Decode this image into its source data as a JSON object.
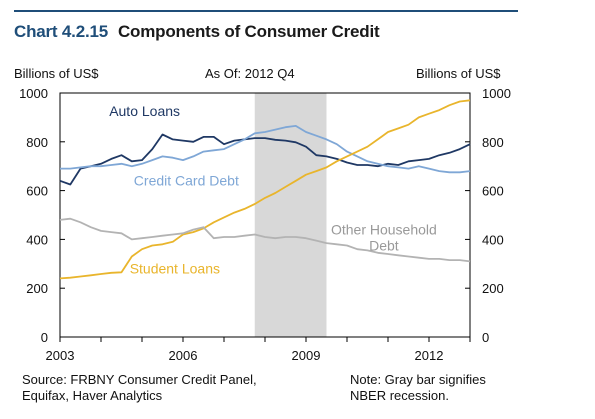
{
  "header": {
    "chart_id": "Chart 4.2.15",
    "chart_title": "Components of Consumer Credit"
  },
  "axis_labels": {
    "left_unit": "Billions of US$",
    "right_unit": "Billions of US$",
    "as_of": "As Of: 2012 Q4"
  },
  "footer": {
    "source": "Source: FRBNY Consumer Credit Panel, Equifax, Haver Analytics",
    "note": "Note: Gray bar signifies NBER recession."
  },
  "colors": {
    "auto": "#1f3864",
    "credit_card": "#7fa7d6",
    "student": "#e9b52c",
    "other": "#b3b3b3",
    "recession": "#d8d8d8"
  },
  "chart_data": {
    "type": "line",
    "xlim": [
      2003.0,
      2013.0
    ],
    "ylim": [
      0,
      1000
    ],
    "xticks": [
      2003,
      2006,
      2009,
      2012
    ],
    "yticks": [
      0,
      200,
      400,
      600,
      800,
      1000
    ],
    "recession": [
      2007.75,
      2009.5
    ],
    "series": [
      {
        "name": "Auto Loans",
        "key": "auto",
        "label_pos": [
          2004.2,
          905
        ],
        "x": [
          2003.0,
          2003.25,
          2003.5,
          2003.75,
          2004.0,
          2004.25,
          2004.5,
          2004.75,
          2005.0,
          2005.25,
          2005.5,
          2005.75,
          2006.0,
          2006.25,
          2006.5,
          2006.75,
          2007.0,
          2007.25,
          2007.5,
          2007.75,
          2008.0,
          2008.25,
          2008.5,
          2008.75,
          2009.0,
          2009.25,
          2009.5,
          2009.75,
          2010.0,
          2010.25,
          2010.5,
          2010.75,
          2011.0,
          2011.25,
          2011.5,
          2011.75,
          2012.0,
          2012.25,
          2012.5,
          2012.75,
          2013.0
        ],
        "values": [
          640,
          625,
          690,
          700,
          710,
          730,
          745,
          720,
          725,
          770,
          830,
          810,
          805,
          800,
          820,
          820,
          790,
          805,
          810,
          815,
          815,
          808,
          805,
          798,
          780,
          745,
          740,
          730,
          715,
          705,
          705,
          700,
          710,
          705,
          720,
          725,
          730,
          745,
          755,
          770,
          790
        ]
      },
      {
        "name": "Credit Card Debt",
        "key": "credit_card",
        "label_pos": [
          2004.8,
          620
        ],
        "x": [
          2003.0,
          2003.25,
          2003.5,
          2003.75,
          2004.0,
          2004.25,
          2004.5,
          2004.75,
          2005.0,
          2005.25,
          2005.5,
          2005.75,
          2006.0,
          2006.25,
          2006.5,
          2006.75,
          2007.0,
          2007.25,
          2007.5,
          2007.75,
          2008.0,
          2008.25,
          2008.5,
          2008.75,
          2009.0,
          2009.25,
          2009.5,
          2009.75,
          2010.0,
          2010.25,
          2010.5,
          2010.75,
          2011.0,
          2011.25,
          2011.5,
          2011.75,
          2012.0,
          2012.25,
          2012.5,
          2012.75,
          2013.0
        ],
        "values": [
          690,
          690,
          695,
          700,
          700,
          705,
          710,
          700,
          710,
          725,
          740,
          735,
          725,
          740,
          760,
          765,
          770,
          790,
          810,
          835,
          840,
          850,
          860,
          865,
          840,
          825,
          810,
          790,
          760,
          740,
          720,
          710,
          700,
          695,
          690,
          700,
          690,
          680,
          675,
          675,
          680
        ]
      },
      {
        "name": "Student Loans",
        "key": "student",
        "label_pos": [
          2004.7,
          260
        ],
        "x": [
          2003.0,
          2003.25,
          2003.5,
          2003.75,
          2004.0,
          2004.25,
          2004.5,
          2004.75,
          2005.0,
          2005.25,
          2005.5,
          2005.75,
          2006.0,
          2006.25,
          2006.5,
          2006.75,
          2007.0,
          2007.25,
          2007.5,
          2007.75,
          2008.0,
          2008.25,
          2008.5,
          2008.75,
          2009.0,
          2009.25,
          2009.5,
          2009.75,
          2010.0,
          2010.25,
          2010.5,
          2010.75,
          2011.0,
          2011.25,
          2011.5,
          2011.75,
          2012.0,
          2012.25,
          2012.5,
          2012.75,
          2013.0
        ],
        "values": [
          240,
          243,
          248,
          253,
          258,
          263,
          265,
          330,
          360,
          375,
          380,
          390,
          420,
          430,
          445,
          470,
          490,
          510,
          525,
          545,
          570,
          590,
          615,
          640,
          665,
          680,
          695,
          720,
          740,
          760,
          780,
          810,
          840,
          855,
          870,
          900,
          915,
          930,
          950,
          965,
          970
        ]
      },
      {
        "name": "Other Household Debt",
        "key": "other",
        "label_pos": [
          2010.9,
          420
        ],
        "x": [
          2003.0,
          2003.25,
          2003.5,
          2003.75,
          2004.0,
          2004.25,
          2004.5,
          2004.75,
          2005.0,
          2005.25,
          2005.5,
          2005.75,
          2006.0,
          2006.25,
          2006.5,
          2006.75,
          2007.0,
          2007.25,
          2007.5,
          2007.75,
          2008.0,
          2008.25,
          2008.5,
          2008.75,
          2009.0,
          2009.25,
          2009.5,
          2009.75,
          2010.0,
          2010.25,
          2010.5,
          2010.75,
          2011.0,
          2011.25,
          2011.5,
          2011.75,
          2012.0,
          2012.25,
          2012.5,
          2012.75,
          2013.0
        ],
        "values": [
          480,
          485,
          470,
          450,
          435,
          430,
          425,
          400,
          405,
          410,
          415,
          420,
          425,
          440,
          450,
          405,
          410,
          410,
          415,
          420,
          410,
          405,
          410,
          410,
          405,
          395,
          385,
          380,
          375,
          360,
          355,
          345,
          340,
          335,
          330,
          325,
          320,
          320,
          315,
          315,
          310
        ]
      }
    ]
  }
}
